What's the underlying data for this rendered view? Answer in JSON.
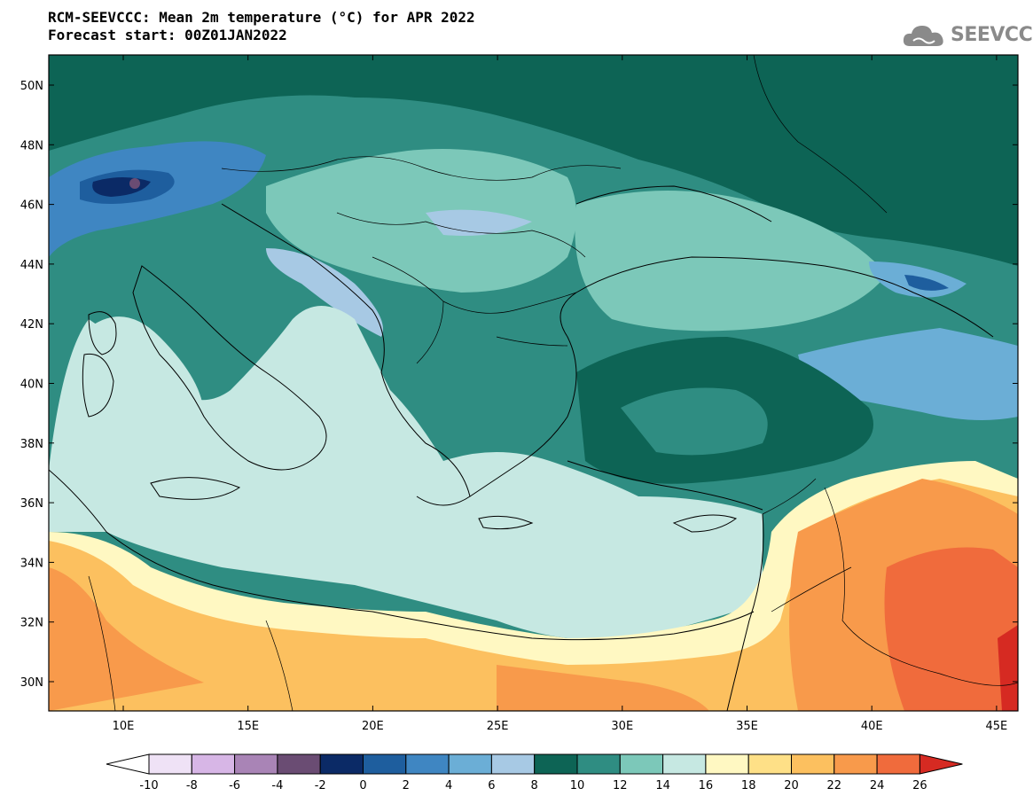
{
  "header": {
    "title_line1": "RCM-SEEVCCC: Mean 2m temperature (°C) for APR 2022",
    "title_line2": "Forecast start: 00Z01JAN2022"
  },
  "logo": {
    "text": "SEEVCCC",
    "icon": "cloud-icon"
  },
  "map": {
    "lat_labels": [
      "50N",
      "48N",
      "46N",
      "44N",
      "42N",
      "40N",
      "38N",
      "36N",
      "34N",
      "32N",
      "30N"
    ],
    "lon_labels": [
      "10E",
      "15E",
      "20E",
      "25E",
      "30E",
      "35E",
      "40E",
      "45E"
    ]
  },
  "colorbar": {
    "tick_labels": [
      "-10",
      "-8",
      "-6",
      "-4",
      "-2",
      "0",
      "2",
      "4",
      "6",
      "8",
      "10",
      "12",
      "14",
      "16",
      "18",
      "20",
      "22",
      "24",
      "26"
    ],
    "colors": [
      "#efe2f6",
      "#d7b6e6",
      "#a984b6",
      "#6a4c73",
      "#0b2a66",
      "#1e5e9e",
      "#3f86c2",
      "#6baed6",
      "#a7c9e4",
      "#0d6455",
      "#2f8d82",
      "#7cc8b9",
      "#c6e8e2",
      "#fff8c2",
      "#fee087",
      "#fcc05f",
      "#f89a4b",
      "#f06b3c",
      "#d62a22"
    ]
  },
  "colors": {
    "sea_light": "#c6e8e2",
    "land_dark": "#0d6455",
    "land_mid": "#2f8d82",
    "land_light": "#7cc8b9",
    "warm": "#fff8c2",
    "hot": "#fcc05f"
  }
}
